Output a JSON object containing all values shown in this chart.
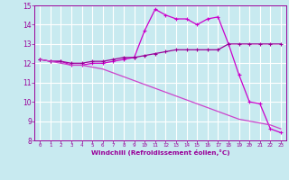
{
  "xlabel": "Windchill (Refroidissement éolien,°C)",
  "bg_color": "#c8eaf0",
  "grid_color": "#ffffff",
  "line_color1": "#cc00cc",
  "line_color2": "#990099",
  "line_color3": "#cc44cc",
  "xlim": [
    -0.5,
    23.5
  ],
  "ylim": [
    8,
    15
  ],
  "xticks": [
    0,
    1,
    2,
    3,
    4,
    5,
    6,
    7,
    8,
    9,
    10,
    11,
    12,
    13,
    14,
    15,
    16,
    17,
    18,
    19,
    20,
    21,
    22,
    23
  ],
  "yticks": [
    8,
    9,
    10,
    11,
    12,
    13,
    14,
    15
  ],
  "series1_x": [
    0,
    1,
    2,
    3,
    4,
    5,
    6,
    7,
    8,
    9,
    10,
    11,
    12,
    13,
    14,
    15,
    16,
    17,
    18,
    19,
    20,
    21,
    22,
    23
  ],
  "series1_y": [
    12.2,
    12.1,
    12.1,
    11.9,
    11.9,
    12.0,
    12.0,
    12.1,
    12.2,
    12.3,
    13.7,
    14.8,
    14.5,
    14.3,
    14.3,
    14.0,
    14.3,
    14.4,
    13.0,
    11.4,
    10.0,
    9.9,
    8.6,
    8.4
  ],
  "series2_x": [
    0,
    1,
    2,
    3,
    4,
    5,
    6,
    7,
    8,
    9,
    10,
    11,
    12,
    13,
    14,
    15,
    16,
    17,
    18,
    19,
    20,
    21,
    22,
    23
  ],
  "series2_y": [
    12.2,
    12.1,
    12.1,
    12.0,
    12.0,
    12.1,
    12.1,
    12.2,
    12.3,
    12.3,
    12.4,
    12.5,
    12.6,
    12.7,
    12.7,
    12.7,
    12.7,
    12.7,
    13.0,
    13.0,
    13.0,
    13.0,
    13.0,
    13.0
  ],
  "series3_x": [
    0,
    1,
    2,
    3,
    4,
    5,
    6,
    7,
    8,
    9,
    10,
    11,
    12,
    13,
    14,
    15,
    16,
    17,
    18,
    19,
    20,
    21,
    22,
    23
  ],
  "series3_y": [
    12.2,
    12.1,
    12.0,
    11.9,
    11.9,
    11.8,
    11.7,
    11.5,
    11.3,
    11.1,
    10.9,
    10.7,
    10.5,
    10.3,
    10.1,
    9.9,
    9.7,
    9.5,
    9.3,
    9.1,
    9.0,
    8.9,
    8.8,
    8.6
  ],
  "xlabel_color": "#990099",
  "tick_color": "#990099",
  "spine_color": "#990099"
}
